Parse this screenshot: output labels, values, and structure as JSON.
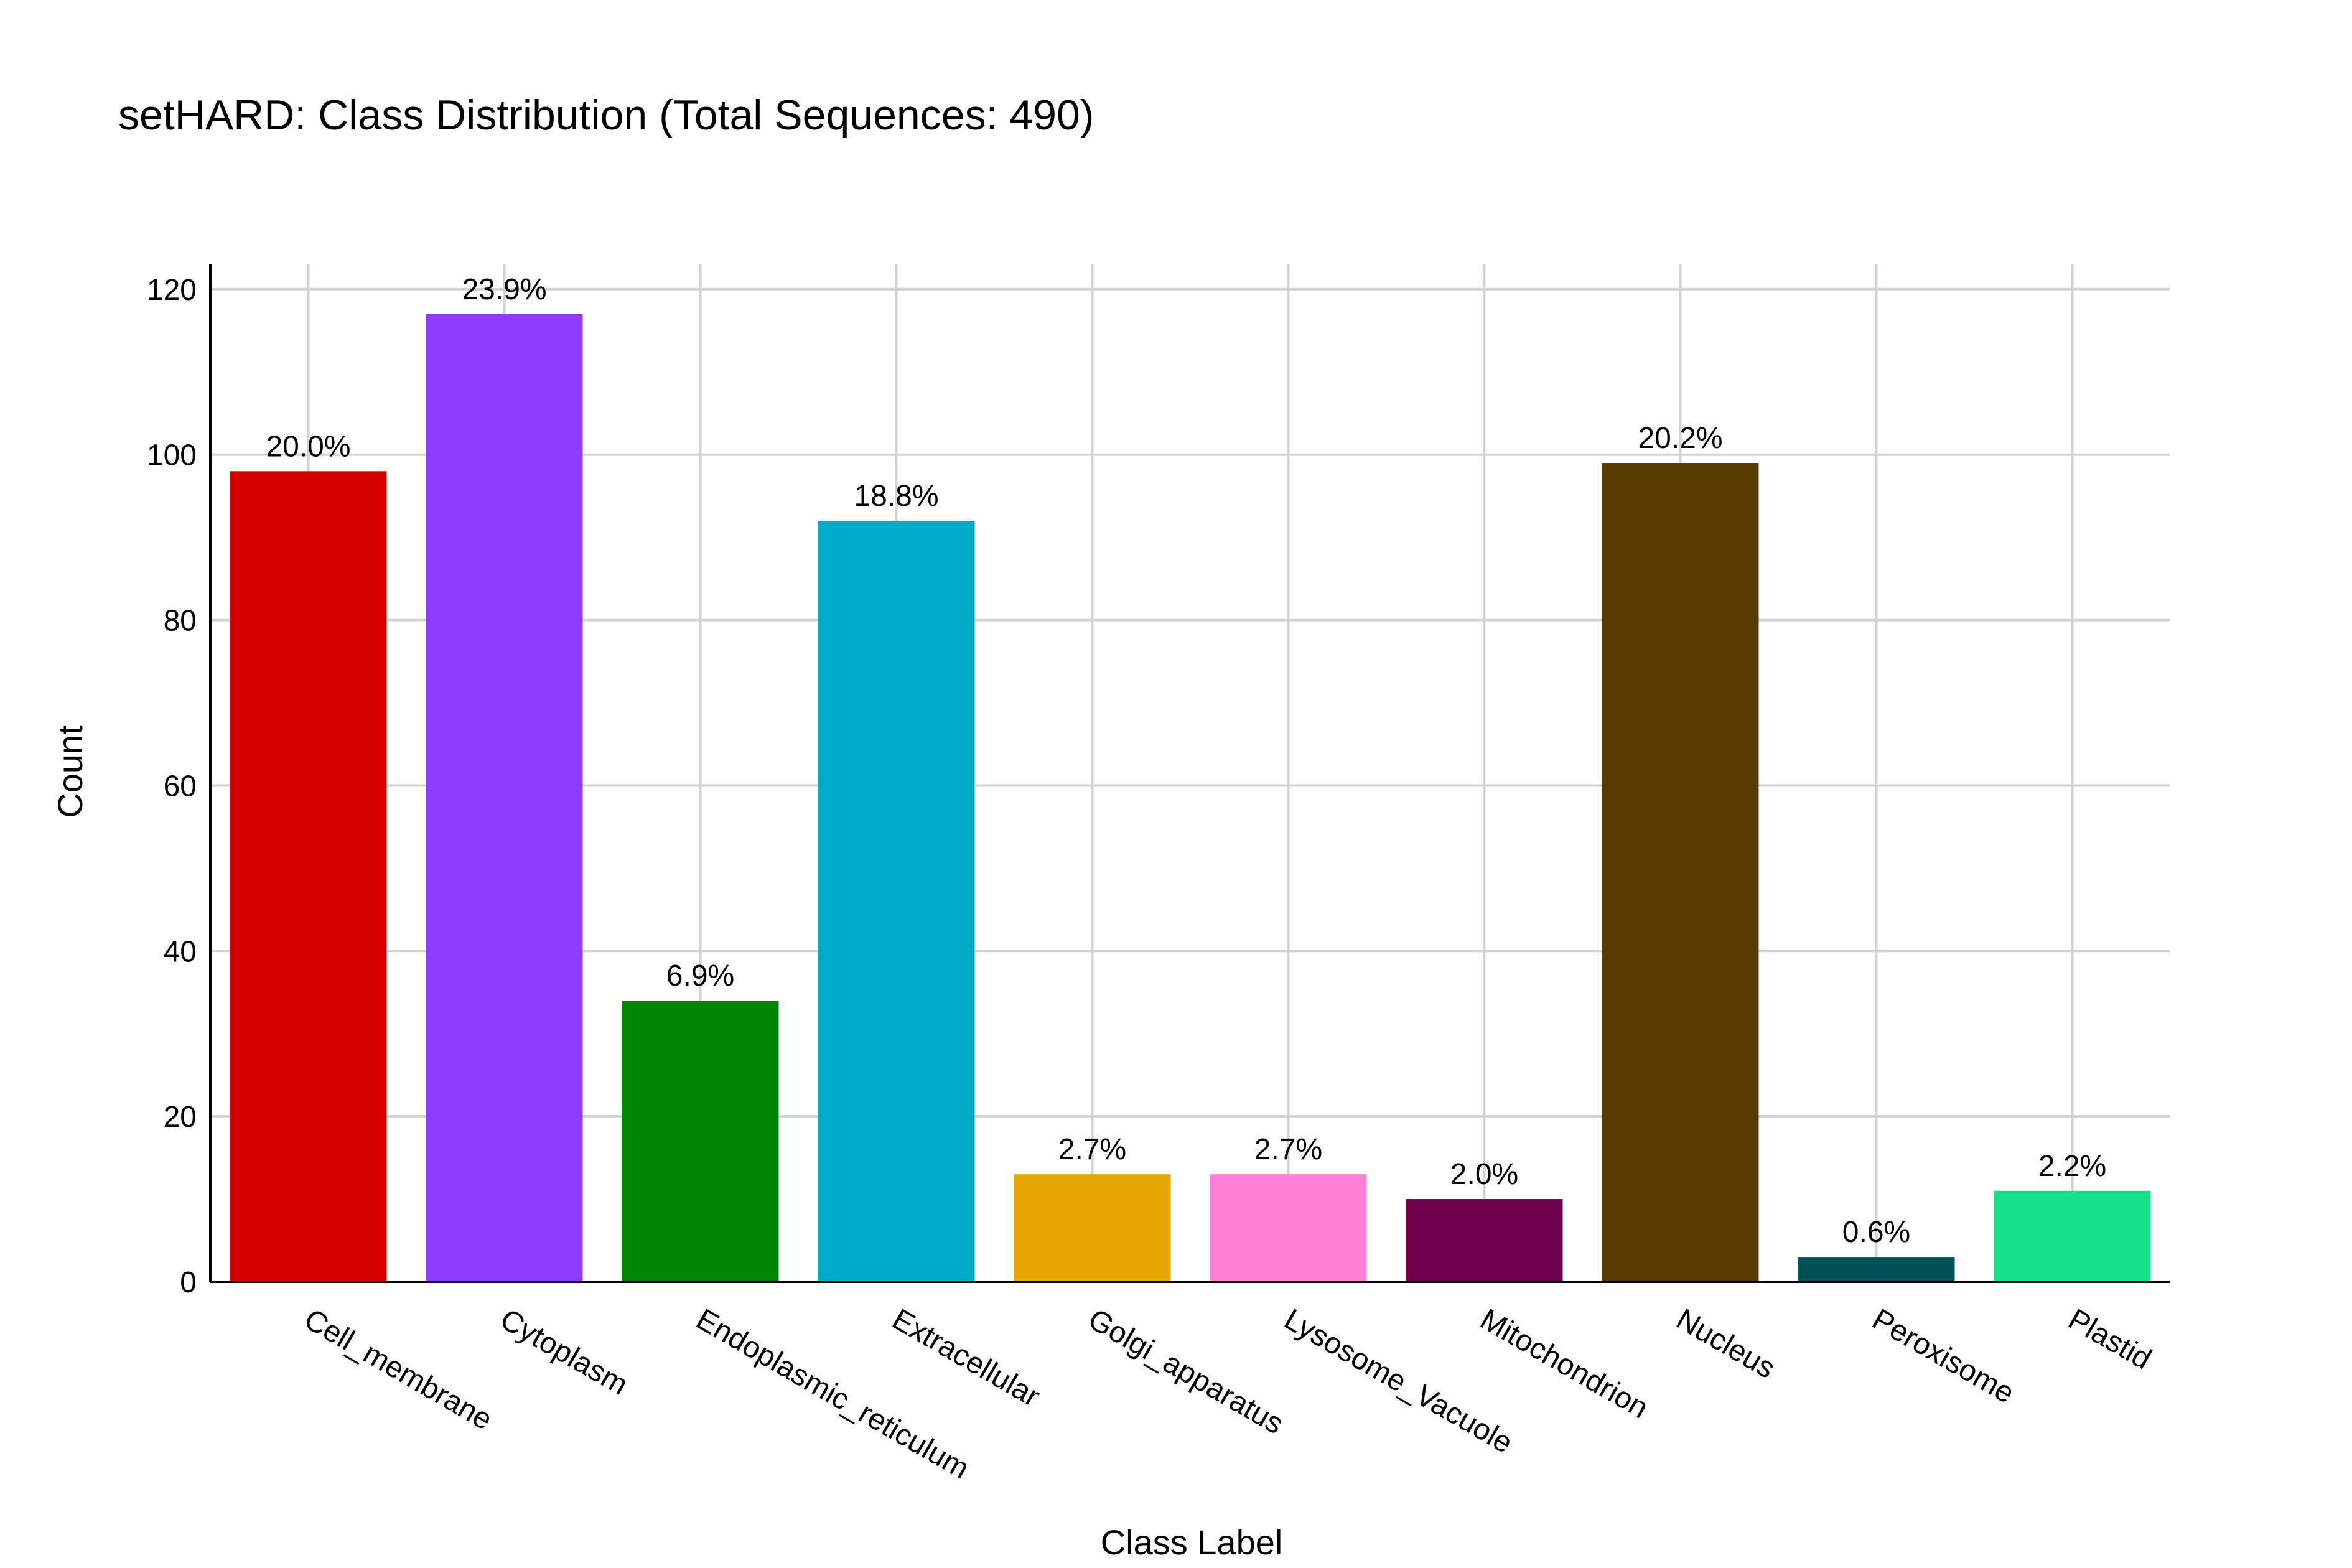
{
  "chart_data": {
    "type": "bar",
    "title": "setHARD: Class Distribution (Total Sequences: 490)",
    "xlabel": "Class Label",
    "ylabel": "Count",
    "ylim": [
      0,
      123
    ],
    "yticks": [
      0,
      20,
      40,
      60,
      80,
      100,
      120
    ],
    "grid": true,
    "legend": "none",
    "categories": [
      "Cell_membrane",
      "Cytoplasm",
      "Endoplasmic_reticulum",
      "Extracellular",
      "Golgi_apparatus",
      "Lysosome_Vacuole",
      "Mitochondrion",
      "Nucleus",
      "Peroxisome",
      "Plastid"
    ],
    "values": [
      98,
      117,
      34,
      92,
      13,
      13,
      10,
      99,
      3,
      11
    ],
    "data_labels": [
      "20.0%",
      "23.9%",
      "6.9%",
      "18.8%",
      "2.7%",
      "2.7%",
      "2.0%",
      "20.2%",
      "0.6%",
      "2.2%"
    ],
    "colors": [
      "#d40000",
      "#8f3cff",
      "#008500",
      "#00aac8",
      "#e6a600",
      "#ff80d4",
      "#6c004b",
      "#573b00",
      "#005259",
      "#16e28e"
    ]
  }
}
